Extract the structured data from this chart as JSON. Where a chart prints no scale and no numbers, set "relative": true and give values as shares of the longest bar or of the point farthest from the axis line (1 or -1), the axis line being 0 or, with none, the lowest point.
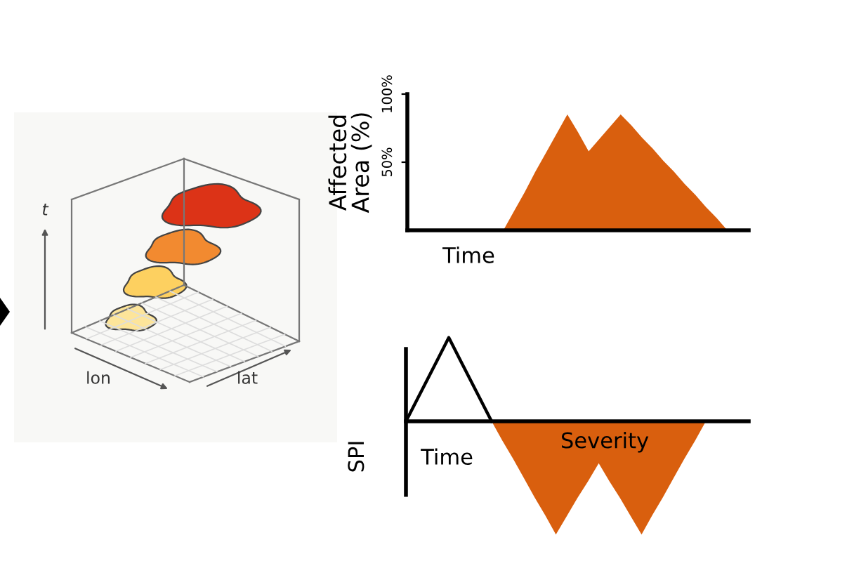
{
  "chart_data": [
    {
      "type": "other",
      "annotations": [
        "t",
        "lon",
        "lat"
      ]
    },
    {
      "type": "area",
      "xlabel": "Time",
      "ylabel": "Affected\nArea (%)",
      "color": "#d95f0e",
      "categories": [
        null,
        null,
        null,
        null,
        null,
        null,
        null,
        null,
        null,
        null,
        null,
        null,
        null,
        null,
        null,
        null,
        null,
        null,
        null,
        null,
        null,
        null,
        null,
        null,
        null,
        null,
        null,
        null,
        null,
        null,
        null,
        null,
        null
      ],
      "values": [
        0,
        0,
        0,
        0,
        0,
        0,
        0,
        0,
        0,
        0,
        14,
        28,
        43,
        57,
        71,
        85,
        72,
        58,
        67,
        76,
        85,
        77,
        68,
        60,
        51,
        43,
        34,
        26,
        17,
        9,
        0,
        0,
        0
      ],
      "ylim": [
        0,
        100
      ],
      "yticks": [
        {
          "value": 50,
          "label": "50%"
        },
        {
          "value": 100,
          "label": "100%"
        }
      ]
    },
    {
      "type": "area",
      "relative": true,
      "xlabel": "Time",
      "ylabel": "SPI",
      "annotations": [
        "Severity"
      ],
      "categories": [
        null,
        null,
        null,
        null,
        null,
        null,
        null,
        null,
        null,
        null,
        null,
        null,
        null,
        null,
        null,
        null,
        null,
        null,
        null,
        null,
        null,
        null,
        null,
        null,
        null,
        null,
        null,
        null,
        null,
        null,
        null,
        null,
        null
      ],
      "series": [
        {
          "type": "line",
          "color": "#000000",
          "values": [
            0,
            0.185,
            0.37,
            0.555,
            0.74,
            0.555,
            0.37,
            0.185,
            0,
            null,
            null,
            null,
            null,
            null,
            null,
            null,
            null,
            null,
            null,
            null,
            null,
            null,
            null,
            null,
            null,
            null,
            null,
            null,
            null,
            null,
            null,
            null,
            null
          ]
        },
        {
          "type": "area",
          "color": "#d95f0e",
          "values": [
            null,
            null,
            null,
            null,
            null,
            null,
            null,
            null,
            0,
            -0.17,
            -0.33,
            -0.5,
            -0.67,
            -0.83,
            -1,
            -0.84,
            -0.68,
            -0.53,
            -0.37,
            -0.53,
            -0.68,
            -0.84,
            -1,
            -0.83,
            -0.67,
            -0.5,
            -0.33,
            -0.17,
            0,
            null,
            null,
            null,
            null
          ]
        }
      ]
    }
  ]
}
